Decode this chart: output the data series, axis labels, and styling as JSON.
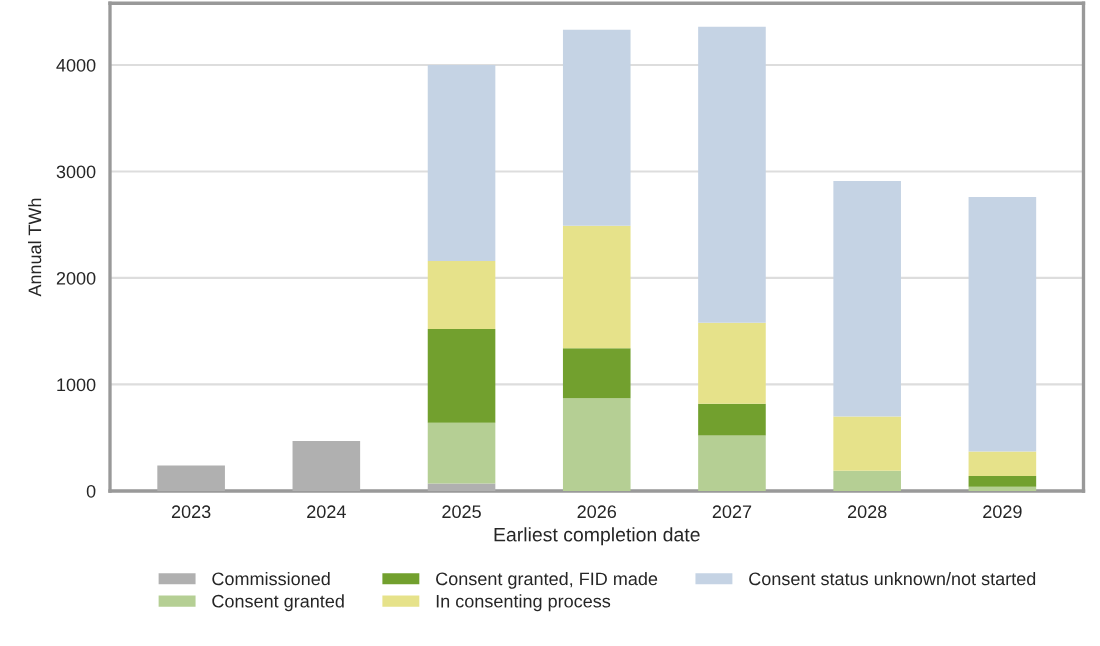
{
  "chart_data": {
    "type": "bar",
    "stacked": true,
    "xlabel": "Earliest completion date",
    "ylabel": "Annual TWh",
    "categories": [
      "2023",
      "2024",
      "2025",
      "2026",
      "2027",
      "2028",
      "2029"
    ],
    "series": [
      {
        "name": "Commissioned",
        "color": "#b0b0b0",
        "values": [
          240,
          470,
          70,
          0,
          0,
          0,
          0
        ]
      },
      {
        "name": "Consent granted",
        "color": "#b5cf94",
        "values": [
          0,
          0,
          570,
          870,
          520,
          190,
          40
        ]
      },
      {
        "name": "Consent granted, FID made",
        "color": "#72a02e",
        "values": [
          0,
          0,
          880,
          470,
          300,
          0,
          100
        ]
      },
      {
        "name": "In consenting process",
        "color": "#e6e28a",
        "values": [
          0,
          0,
          640,
          1150,
          760,
          510,
          230
        ]
      },
      {
        "name": "Consent status unknown/not started",
        "color": "#c5d3e4",
        "values": [
          0,
          0,
          1840,
          1840,
          2780,
          2210,
          2390
        ]
      }
    ],
    "ylim": [
      0,
      4580
    ],
    "yticks": [
      0,
      1000,
      2000,
      3000,
      4000
    ],
    "grid": "y",
    "legend": "bottom"
  }
}
